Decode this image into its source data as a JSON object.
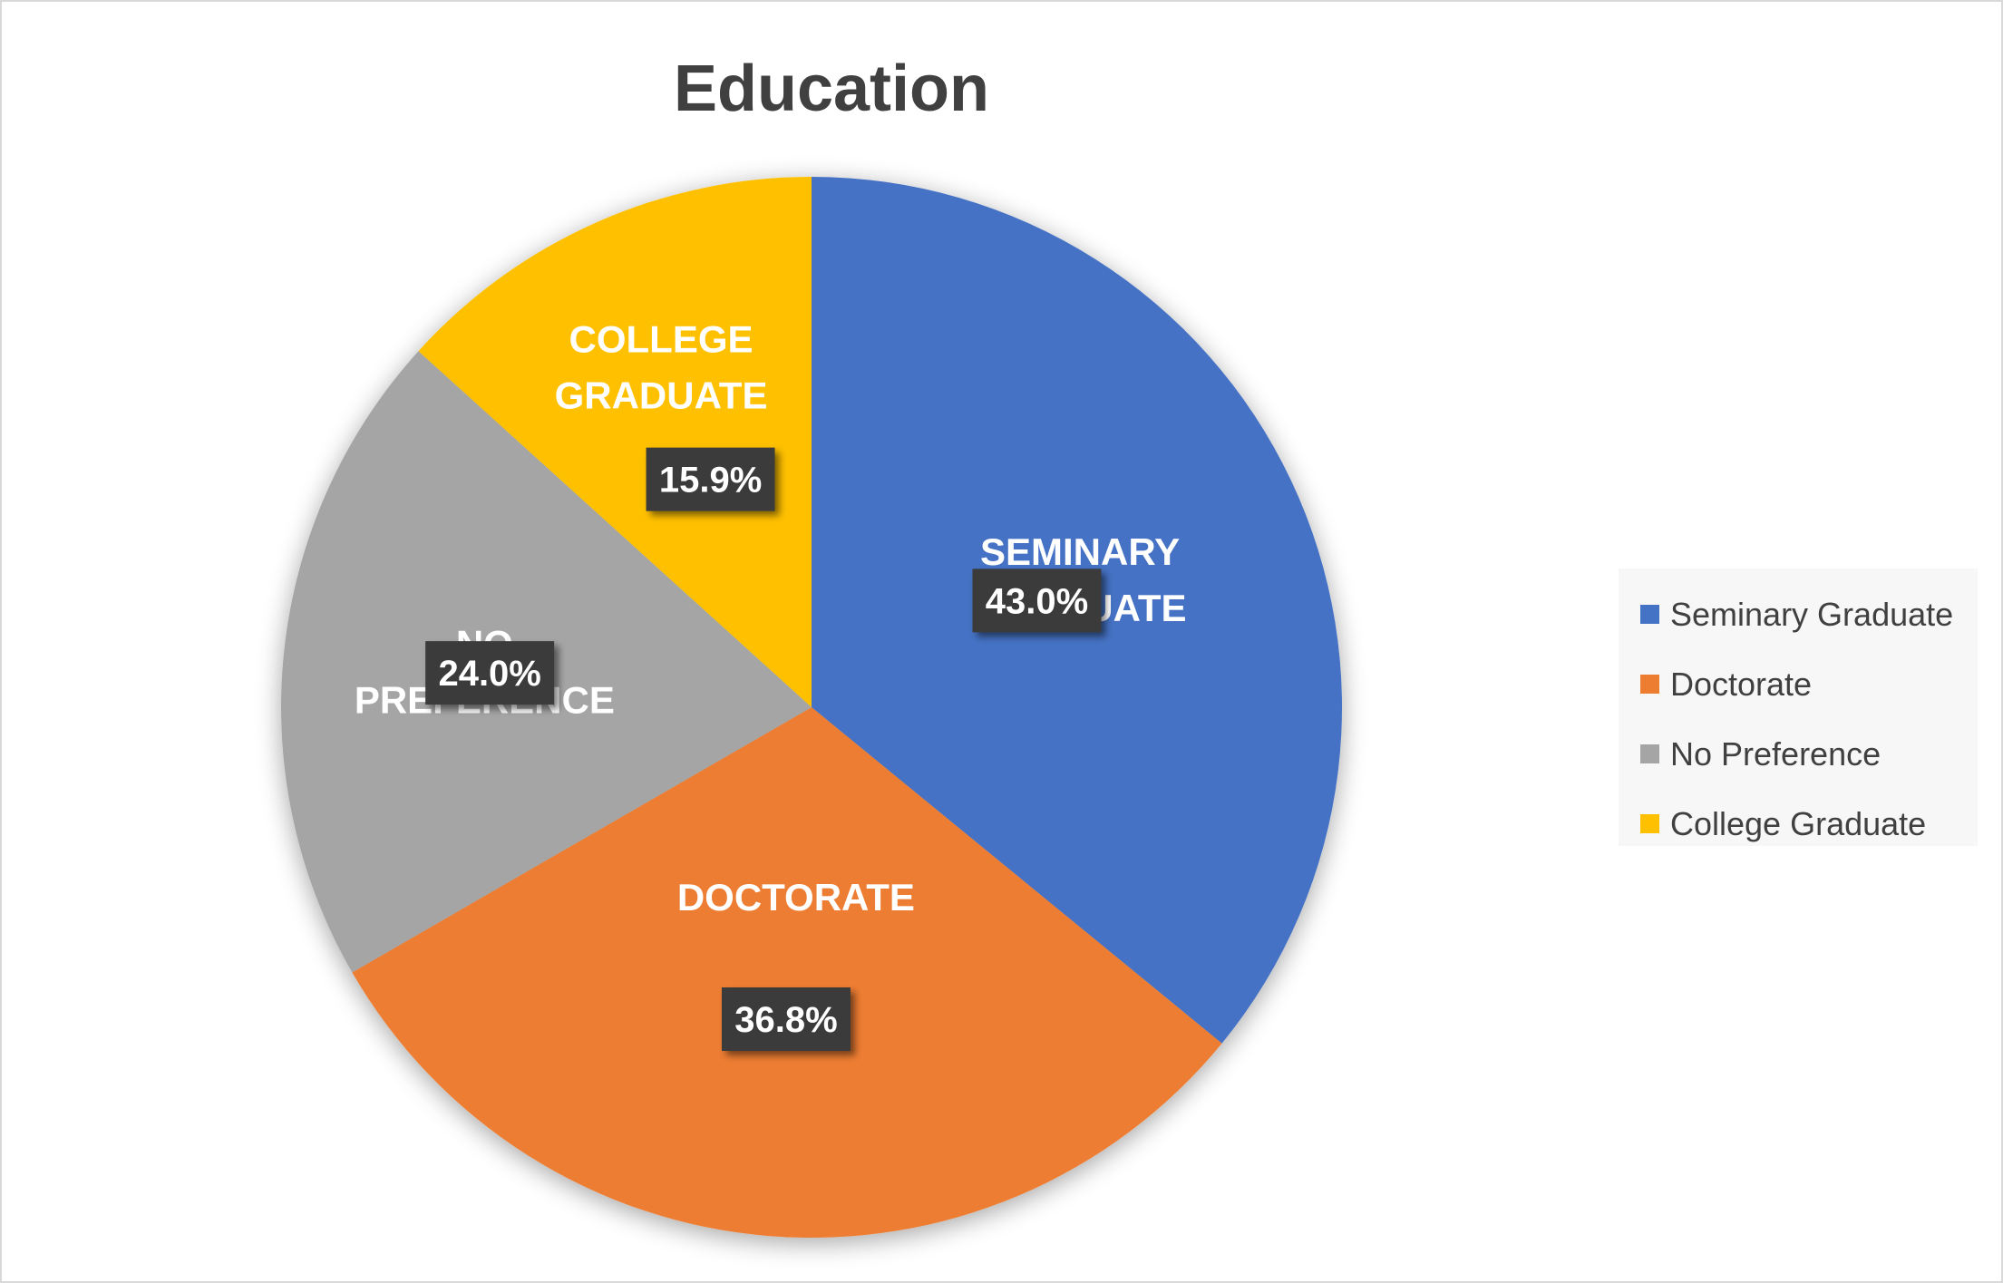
{
  "chart_data": {
    "type": "pie",
    "title": "Education",
    "slices": [
      {
        "name": "Seminary Graduate",
        "label": "SEMINARY GRADUATE",
        "value": 43.0,
        "value_label": "43.0%",
        "color": "#4472c4"
      },
      {
        "name": "Doctorate",
        "label": "DOCTORATE",
        "value": 36.8,
        "value_label": "36.8%",
        "color": "#ed7d31"
      },
      {
        "name": "No Preference",
        "label": "NO PREFERENCE",
        "value": 24.0,
        "value_label": "24.0%",
        "color": "#a5a5a5"
      },
      {
        "name": "College Graduate",
        "label": "COLLEGE GRADUATE",
        "value": 15.9,
        "value_label": "15.9%",
        "color": "#ffc000"
      }
    ],
    "start_angle": "12 o'clock",
    "direction": "clockwise",
    "legend_position": "right",
    "data_label_box_color": "#3b3b3b"
  }
}
